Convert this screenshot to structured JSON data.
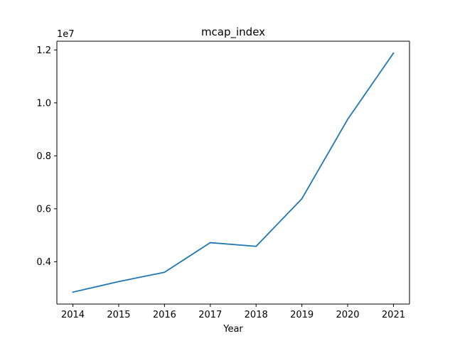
{
  "chart_data": {
    "type": "line",
    "title": "mcap_index",
    "xlabel": "Year",
    "ylabel": "",
    "y_offset_label": "1e7",
    "x": [
      2014,
      2015,
      2016,
      2017,
      2018,
      2019,
      2020,
      2021
    ],
    "x_tick_labels": [
      "2014",
      "2015",
      "2016",
      "2017",
      "2018",
      "2019",
      "2020",
      "2021"
    ],
    "series": [
      {
        "name": "",
        "color": "#1f77b4",
        "values": [
          2850000,
          3250000,
          3600000,
          4720000,
          4580000,
          6380000,
          9380000,
          11880000
        ]
      }
    ],
    "y_ticks": [
      4000000,
      6000000,
      8000000,
      10000000,
      12000000
    ],
    "y_tick_labels": [
      "0.4",
      "0.6",
      "0.8",
      "1.0",
      "1.2"
    ],
    "xlim": [
      2013.65,
      2021.35
    ],
    "ylim": [
      2400000,
      12330000
    ],
    "grid": false,
    "legend": "none"
  }
}
